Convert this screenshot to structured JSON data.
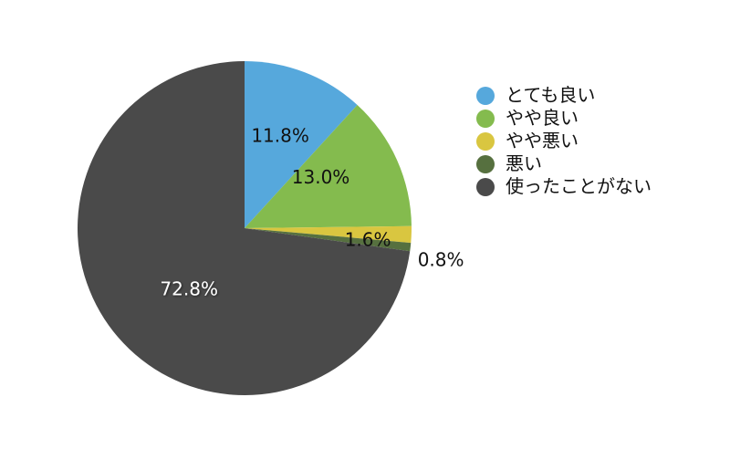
{
  "chart_data": {
    "type": "pie",
    "title": "",
    "categories": [
      "とても良い",
      "やや良い",
      "やや悪い",
      "悪い",
      "使ったことがない"
    ],
    "values": [
      11.8,
      13.0,
      1.6,
      0.8,
      72.8
    ],
    "value_labels": [
      "11.8%",
      "13.0%",
      "1.6%",
      "0.8%",
      "72.8%"
    ],
    "colors": [
      "#56a8dc",
      "#84bb4e",
      "#d9c640",
      "#56703f",
      "#4a4a4a"
    ],
    "start_angle": "12 o'clock",
    "direction": "clockwise",
    "legend_position": "right"
  }
}
